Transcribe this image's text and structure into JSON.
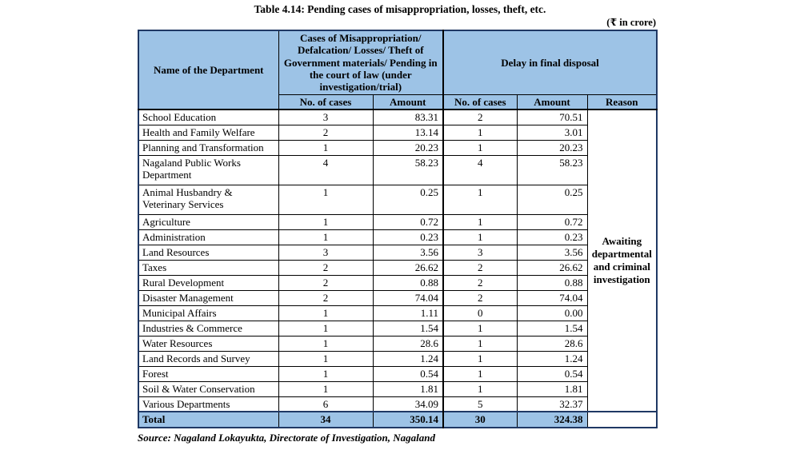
{
  "title": "Table 4.14: Pending cases of misappropriation, losses, theft, etc.",
  "unit_note": "(₹ in crore)",
  "source": "Source: Nagaland Lokayukta, Directorate of Investigation, Nagaland",
  "colors": {
    "header_fill": "#9DC3E6",
    "outer_border": "#1F3864",
    "inner_border": "#000000"
  },
  "table": {
    "header": {
      "department": "Name of the Department",
      "group1": "Cases of Misappropriation/ Defalcation/ Losses/ Theft of Government materials/ Pending in the court of law (under investigation/trial)",
      "group2": "Delay in final disposal",
      "sub": [
        "No. of cases",
        "Amount",
        "No. of cases",
        "Amount",
        "Reason"
      ]
    },
    "reason": "Awaiting departmental and criminal investigation",
    "rows": [
      {
        "department": "School Education",
        "cases": "3",
        "amount": "83.31",
        "delay_cases": "2",
        "delay_amount": "70.51"
      },
      {
        "department": "Health and Family Welfare",
        "cases": "2",
        "amount": "13.14",
        "delay_cases": "1",
        "delay_amount": "3.01"
      },
      {
        "department": "Planning and Transformation",
        "cases": "1",
        "amount": "20.23",
        "delay_cases": "1",
        "delay_amount": "20.23"
      },
      {
        "department": "Nagaland Public Works Department",
        "cases": "4",
        "amount": "58.23",
        "delay_cases": "4",
        "delay_amount": "58.23"
      },
      {
        "department": "Animal Husbandry & Veterinary Services",
        "cases": "1",
        "amount": "0.25",
        "delay_cases": "1",
        "delay_amount": "0.25"
      },
      {
        "department": "Agriculture",
        "cases": "1",
        "amount": "0.72",
        "delay_cases": "1",
        "delay_amount": "0.72"
      },
      {
        "department": "Administration",
        "cases": "1",
        "amount": "0.23",
        "delay_cases": "1",
        "delay_amount": "0.23"
      },
      {
        "department": "Land Resources",
        "cases": "3",
        "amount": "3.56",
        "delay_cases": "3",
        "delay_amount": "3.56"
      },
      {
        "department": "Taxes",
        "cases": "2",
        "amount": "26.62",
        "delay_cases": "2",
        "delay_amount": "26.62"
      },
      {
        "department": "Rural Development",
        "cases": "2",
        "amount": "0.88",
        "delay_cases": "2",
        "delay_amount": "0.88"
      },
      {
        "department": "Disaster Management",
        "cases": "2",
        "amount": "74.04",
        "delay_cases": "2",
        "delay_amount": "74.04"
      },
      {
        "department": "Municipal Affairs",
        "cases": "1",
        "amount": "1.11",
        "delay_cases": "0",
        "delay_amount": "0.00"
      },
      {
        "department": "Industries & Commerce",
        "cases": "1",
        "amount": "1.54",
        "delay_cases": "1",
        "delay_amount": "1.54"
      },
      {
        "department": "Water Resources",
        "cases": "1",
        "amount": "28.6",
        "delay_cases": "1",
        "delay_amount": "28.6"
      },
      {
        "department": "Land Records and Survey",
        "cases": "1",
        "amount": "1.24",
        "delay_cases": "1",
        "delay_amount": "1.24"
      },
      {
        "department": "Forest",
        "cases": "1",
        "amount": "0.54",
        "delay_cases": "1",
        "delay_amount": "0.54"
      },
      {
        "department": "Soil & Water Conservation",
        "cases": "1",
        "amount": "1.81",
        "delay_cases": "1",
        "delay_amount": "1.81"
      },
      {
        "department": "Various Departments",
        "cases": "6",
        "amount": "34.09",
        "delay_cases": "5",
        "delay_amount": "32.37"
      }
    ],
    "total": {
      "label": "Total",
      "cases": "34",
      "amount": "350.14",
      "delay_cases": "30",
      "delay_amount": "324.38"
    }
  }
}
